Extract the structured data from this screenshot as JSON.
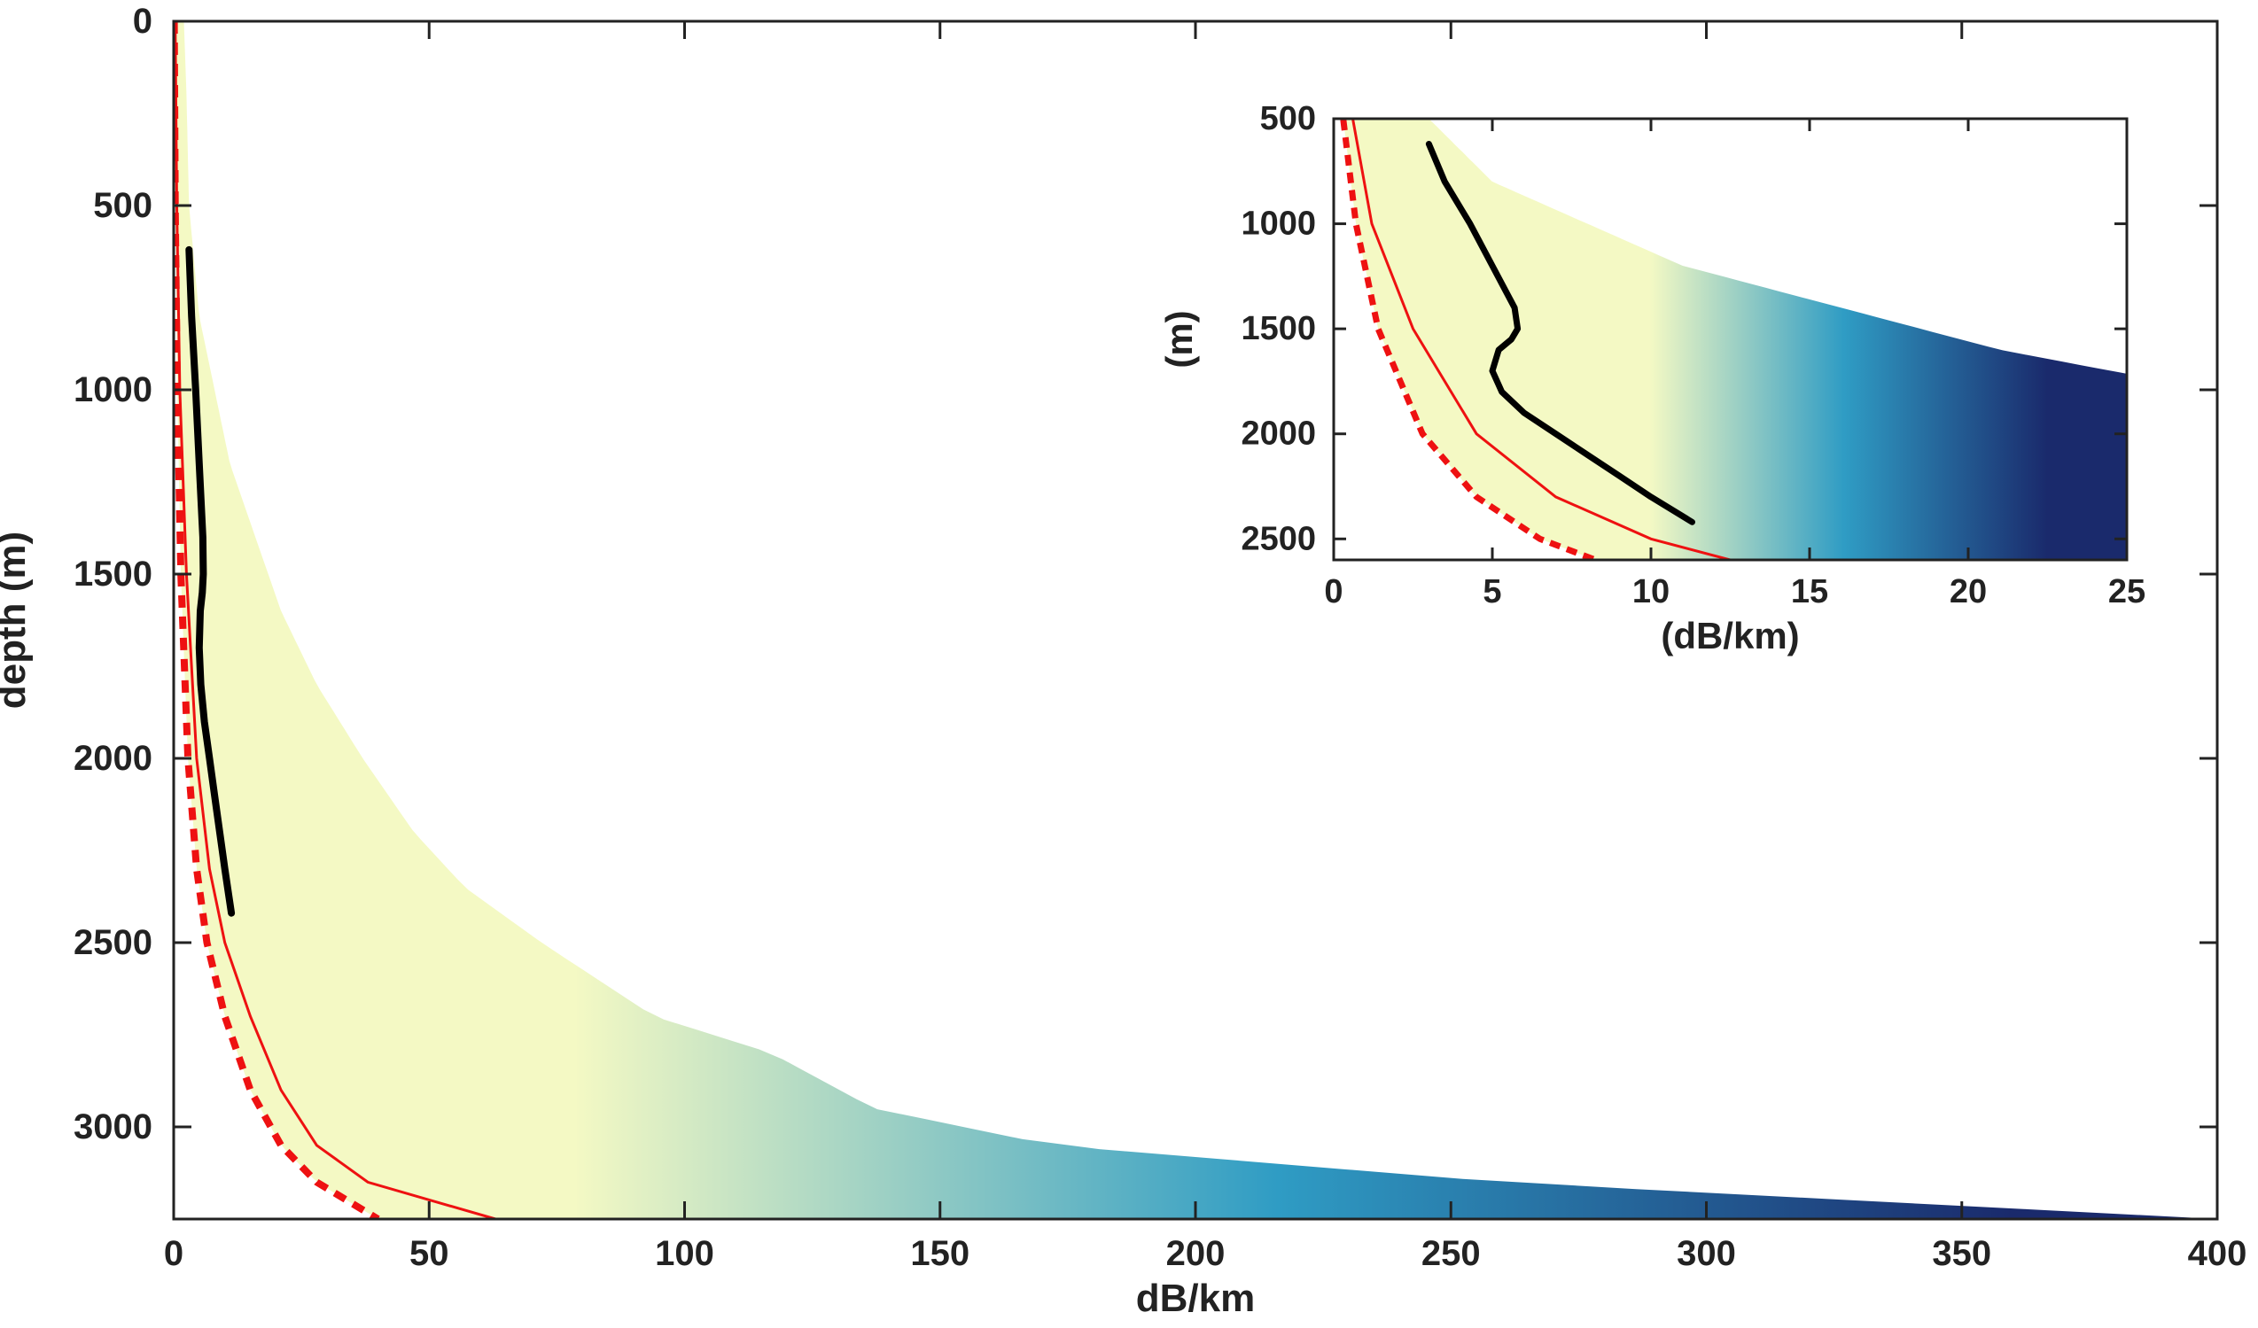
{
  "colors": {
    "fan_deep": "#1a2a6c",
    "fan_mid": "#2f9cc4",
    "fan_light": "#f4f9c4",
    "red_curve": "#ee1111",
    "black_curve": "#000000",
    "axis": "#222222"
  },
  "chart_data": [
    {
      "type": "area",
      "xlabel": "dB/km",
      "ylabel": "depth (m)",
      "xlim": [
        0,
        400
      ],
      "ylim": [
        0,
        3250
      ],
      "y_reversed": true,
      "xticks": [
        0,
        50,
        100,
        150,
        200,
        250,
        300,
        350,
        400
      ],
      "yticks": [
        0,
        500,
        1000,
        1500,
        2000,
        2500,
        3000
      ],
      "xtick_labels": [
        "0",
        "50",
        "100",
        "150",
        "200",
        "250",
        "300",
        "350",
        "400"
      ],
      "ytick_labels": [
        "0",
        "500",
        "1000",
        "1500",
        "2000",
        "2500",
        "3000"
      ],
      "grid": false,
      "fan_outer": {
        "depth": [
          0,
          200,
          500,
          800,
          1000,
          1200,
          1400,
          1600,
          1800,
          2000,
          2200,
          2350,
          2500,
          2700,
          2800,
          2950,
          3050,
          3150,
          3200,
          3250
        ],
        "value": [
          2.0,
          2.5,
          3.0,
          5.0,
          8.0,
          11.0,
          16.0,
          21.0,
          28.0,
          37.0,
          47.0,
          57.0,
          72.0,
          94.0,
          117.0,
          137.0,
          172.0,
          260.0,
          330.0,
          400.0
        ]
      },
      "red_solid": {
        "depth": [
          0,
          500,
          1000,
          1500,
          2000,
          2300,
          2500,
          2700,
          2900,
          3050,
          3150,
          3250
        ],
        "value": [
          0.3,
          0.6,
          1.2,
          2.5,
          4.5,
          7.0,
          10.0,
          15.0,
          21.0,
          28.0,
          38.0,
          63.0
        ]
      },
      "red_dashed": {
        "depth": [
          0,
          500,
          1000,
          1500,
          2000,
          2300,
          2500,
          2700,
          2900,
          3050,
          3150,
          3250
        ],
        "value": [
          0.1,
          0.3,
          0.7,
          1.4,
          2.8,
          4.5,
          6.5,
          10.0,
          15.0,
          21.0,
          28.0,
          40.0
        ]
      },
      "black_curve": {
        "depth": [
          620,
          800,
          1000,
          1200,
          1400,
          1500,
          1550,
          1600,
          1700,
          1800,
          1900,
          2000,
          2100,
          2200,
          2300,
          2420
        ],
        "value": [
          3.0,
          3.5,
          4.3,
          5.0,
          5.7,
          5.8,
          5.6,
          5.2,
          5.0,
          5.3,
          6.0,
          7.0,
          8.0,
          9.0,
          10.0,
          11.3
        ]
      }
    },
    {
      "type": "area",
      "xlabel": "(dB/km)",
      "ylabel": "(m)",
      "xlim": [
        0,
        25
      ],
      "ylim": [
        500,
        2600
      ],
      "y_reversed": true,
      "xticks": [
        0,
        5,
        10,
        15,
        20,
        25
      ],
      "yticks": [
        500,
        1000,
        1500,
        2000,
        2500
      ],
      "xtick_labels": [
        "0",
        "5",
        "10",
        "15",
        "20",
        "25"
      ],
      "ytick_labels": [
        "500",
        "1000",
        "1500",
        "2000",
        "2500"
      ],
      "grid": false
    }
  ]
}
